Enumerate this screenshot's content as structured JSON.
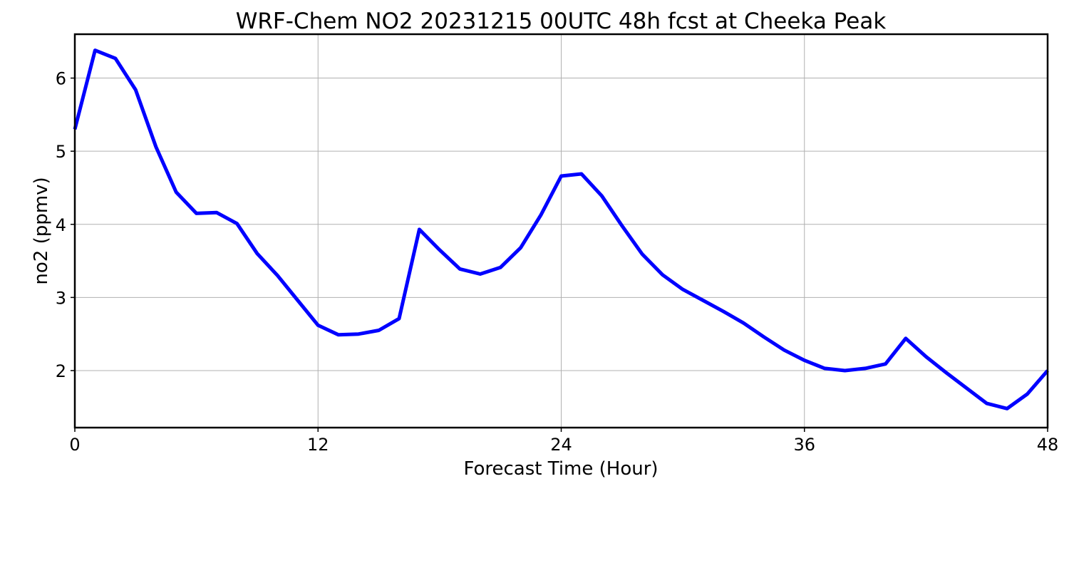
{
  "chart_data": {
    "type": "line",
    "title": "WRF-Chem NO2  20231215 00UTC 48h fcst at Cheeka Peak",
    "xlabel": "Forecast Time (Hour)",
    "ylabel": "no2  (ppmv)",
    "xlim": [
      0,
      48
    ],
    "ylim": [
      1.22,
      6.6
    ],
    "xticks": [
      0,
      12,
      24,
      36,
      48
    ],
    "yticks": [
      2,
      3,
      4,
      5,
      6
    ],
    "grid": true,
    "line_color": "#0000ff",
    "series": [
      {
        "x": [
          0,
          1,
          2,
          3,
          4,
          5,
          6,
          7,
          8,
          9,
          10,
          11,
          12,
          13,
          14,
          15,
          16,
          17,
          18,
          19,
          20,
          21,
          22,
          23,
          24,
          25,
          26,
          27,
          28,
          29,
          30,
          31,
          32,
          33,
          34,
          35,
          36,
          37,
          38,
          39,
          40,
          41,
          42,
          43,
          44,
          45,
          46,
          47,
          48
        ],
        "values": [
          5.3,
          6.38,
          6.27,
          5.84,
          5.06,
          4.44,
          4.15,
          4.16,
          4.01,
          3.6,
          3.3,
          2.96,
          2.62,
          2.49,
          2.5,
          2.55,
          2.71,
          3.93,
          3.65,
          3.39,
          3.32,
          3.41,
          3.68,
          4.13,
          4.66,
          4.69,
          4.39,
          3.98,
          3.59,
          3.31,
          3.11,
          2.96,
          2.81,
          2.65,
          2.46,
          2.28,
          2.14,
          2.03,
          2.0,
          2.03,
          2.09,
          2.44,
          2.19,
          1.97,
          1.76,
          1.55,
          1.48,
          1.68,
          2.0
        ]
      }
    ]
  }
}
